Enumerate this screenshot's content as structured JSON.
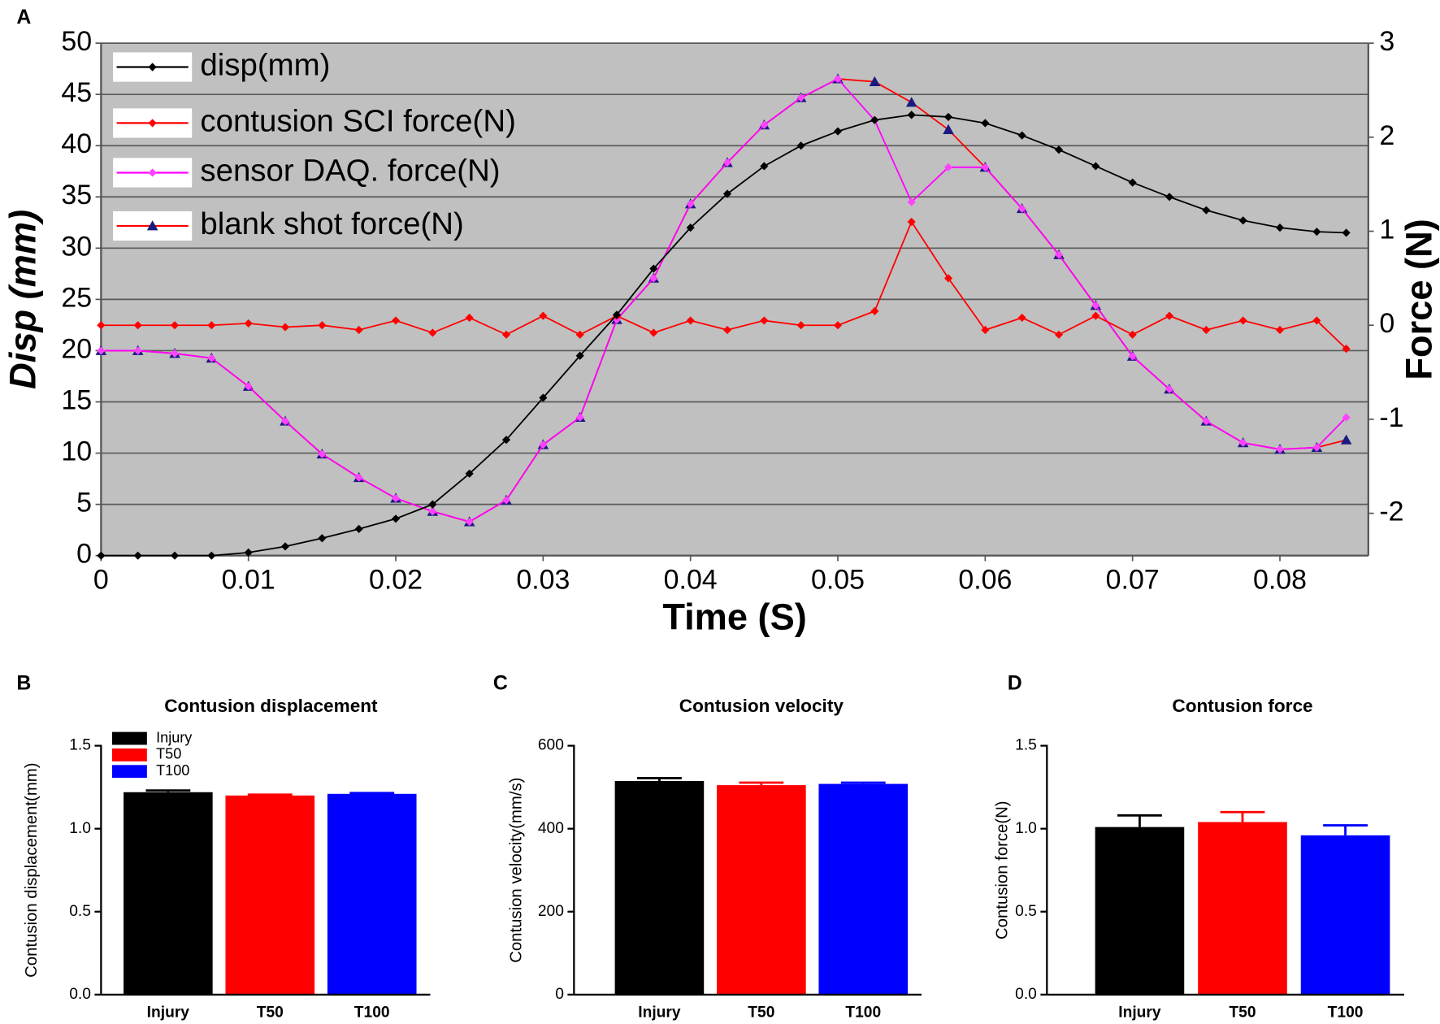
{
  "chart_data": [
    {
      "panel": "A",
      "type": "line",
      "x": [
        0,
        0.0025,
        0.005,
        0.0075,
        0.01,
        0.0125,
        0.015,
        0.0175,
        0.02,
        0.0225,
        0.025,
        0.0275,
        0.03,
        0.0325,
        0.035,
        0.0375,
        0.04,
        0.0425,
        0.045,
        0.0475,
        0.05,
        0.0525,
        0.055,
        0.0575,
        0.06,
        0.0625,
        0.065,
        0.0675,
        0.07,
        0.0725,
        0.075,
        0.0775,
        0.08,
        0.0825,
        0.0845
      ],
      "xlim": [
        0,
        0.086
      ],
      "xticks": [
        0,
        0.01,
        0.02,
        0.03,
        0.04,
        0.05,
        0.06,
        0.07,
        0.08
      ],
      "ylim": [
        0,
        50
      ],
      "yticks": [
        0,
        5,
        10,
        15,
        20,
        25,
        30,
        35,
        40,
        45,
        50
      ],
      "y2lim": [
        -2.45,
        3
      ],
      "y2ticks": [
        3,
        2,
        1,
        0,
        -1,
        -2
      ],
      "xlabel": "Time (S)",
      "ylabel": "Disp (mm)",
      "y2label": "Force (N)",
      "grid": true,
      "legend": "upper left",
      "series": [
        {
          "name": "disp(mm)",
          "color": "#000000",
          "marker": "diamond",
          "marker_color": "#000000",
          "values": [
            0,
            0,
            0,
            0,
            0.3,
            0.9,
            1.7,
            2.6,
            3.6,
            5,
            8,
            11.3,
            15.4,
            19.5,
            23.5,
            28,
            32,
            35.3,
            38,
            40,
            41.4,
            42.5,
            43,
            42.8,
            42.2,
            41,
            39.6,
            38,
            36.4,
            35,
            33.7,
            32.7,
            32,
            31.6,
            31.5
          ]
        },
        {
          "name": "contusion SCI force(N)",
          "color": "#ff0000",
          "marker": "diamond",
          "marker_color": "#ff0000",
          "axis": "y2",
          "values": [
            0,
            0,
            0,
            0,
            0.02,
            -0.02,
            0,
            -0.05,
            0.05,
            -0.08,
            0.08,
            -0.1,
            0.1,
            -0.1,
            0.1,
            -0.08,
            0.05,
            -0.05,
            0.05,
            0,
            0,
            0.15,
            1.1,
            0.5,
            -0.05,
            0.08,
            -0.1,
            0.1,
            -0.1,
            0.1,
            -0.05,
            0.05,
            -0.05,
            0.05,
            -0.25
          ]
        },
        {
          "name": "sensor DAQ. force(N)",
          "color": "#ff00ff",
          "marker": "diamond",
          "marker_color": "#ff44ff",
          "axis": "y2",
          "values": [
            -0.27,
            -0.27,
            -0.3,
            -0.35,
            -0.65,
            -1.02,
            -1.37,
            -1.62,
            -1.84,
            -1.98,
            -2.09,
            -1.86,
            -1.27,
            -0.98,
            0.06,
            0.5,
            1.29,
            1.73,
            2.13,
            2.42,
            2.62,
            2.18,
            1.31,
            1.68,
            1.68,
            1.24,
            0.75,
            0.21,
            -0.33,
            -0.68,
            -1.02,
            -1.25,
            -1.32,
            -1.3,
            -0.98
          ]
        },
        {
          "name": "blank shot force(N)",
          "color": "#ff0000",
          "marker": "triangle",
          "marker_color": "#1a1a80",
          "axis": "y2",
          "values": [
            -0.27,
            -0.27,
            -0.3,
            -0.35,
            -0.65,
            -1.02,
            -1.37,
            -1.62,
            -1.84,
            -1.98,
            -2.09,
            -1.86,
            -1.27,
            -0.98,
            0.06,
            0.5,
            1.29,
            1.73,
            2.13,
            2.42,
            2.62,
            2.59,
            2.37,
            2.08,
            1.68,
            1.24,
            0.75,
            0.21,
            -0.33,
            -0.68,
            -1.02,
            -1.25,
            -1.32,
            -1.3,
            -1.22
          ]
        }
      ]
    },
    {
      "panel": "B",
      "type": "bar",
      "title": "Contusion displacement",
      "ylabel": "Contusion displacement(mm)",
      "categories": [
        "Injury",
        "T50",
        "T100"
      ],
      "values": [
        1.22,
        1.2,
        1.21
      ],
      "errors": [
        0.01,
        0.005,
        0.005
      ],
      "colors": [
        "#000000",
        "#ff0000",
        "#0000ff"
      ],
      "ylim": [
        0,
        1.5
      ],
      "yticks": [
        {
          "value": 0,
          "label": "0.0"
        },
        {
          "value": 0.5,
          "label": "0.5"
        },
        {
          "value": 1,
          "label": "1.0"
        },
        {
          "value": 1.5,
          "label": "1.5"
        }
      ],
      "legend": "upper left"
    },
    {
      "panel": "C",
      "type": "bar",
      "title": "Contusion velocity",
      "ylabel": "Contusion velocity(mm/s)",
      "categories": [
        "Injury",
        "T50",
        "T100"
      ],
      "values": [
        515,
        505,
        508
      ],
      "errors": [
        7,
        6,
        3
      ],
      "colors": [
        "#000000",
        "#ff0000",
        "#0000ff"
      ],
      "ylim": [
        0,
        600
      ],
      "yticks": [
        0,
        200,
        400,
        600
      ]
    },
    {
      "panel": "D",
      "type": "bar",
      "title": "Contusion force",
      "ylabel": "Contusion force(N)",
      "categories": [
        "Injury",
        "T50",
        "T100"
      ],
      "values": [
        1.01,
        1.04,
        0.96
      ],
      "errors": [
        0.07,
        0.06,
        0.06
      ],
      "colors": [
        "#000000",
        "#ff0000",
        "#0000ff"
      ],
      "ylim": [
        0,
        1.5
      ],
      "yticks": [
        {
          "value": 0,
          "label": "0.0"
        },
        {
          "value": 0.5,
          "label": "0.5"
        },
        {
          "value": 1,
          "label": "1.0"
        },
        {
          "value": 1.5,
          "label": "1.5"
        }
      ]
    }
  ]
}
